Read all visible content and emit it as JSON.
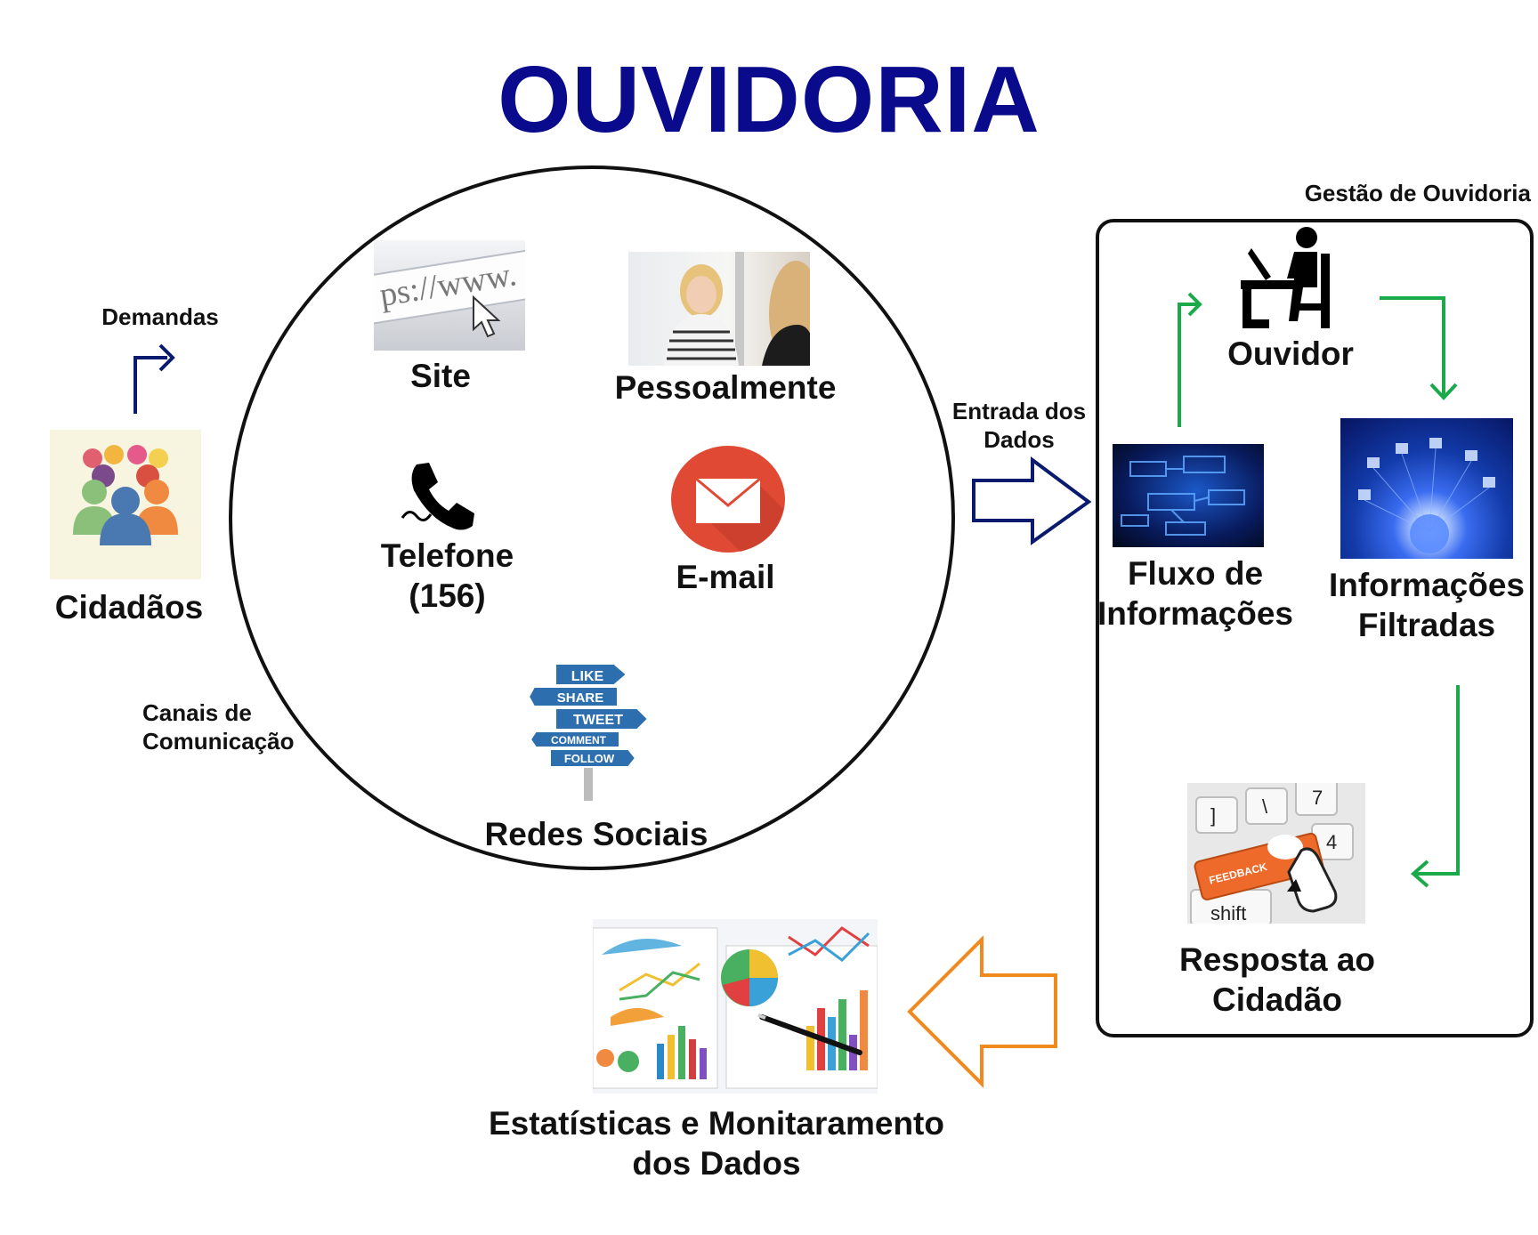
{
  "title": "OUVIDORIA",
  "colors": {
    "title": "#0a0a8c",
    "navy_arrow": "#0a1a6e",
    "green_arrow": "#1aaa4a",
    "orange_arrow": "#f08a1e",
    "email_red": "#e04a35",
    "frame": "#111111"
  },
  "labels": {
    "demandas": "Demandas",
    "cidadaos": "Cidadãos",
    "canais": [
      "Canais de",
      "Comunicação"
    ],
    "site": "Site",
    "pessoalmente": "Pessoalmente",
    "telefone": [
      "Telefone",
      "(156)"
    ],
    "email": "E-mail",
    "redes_sociais": "Redes Sociais",
    "entrada": [
      "Entrada dos",
      "Dados"
    ],
    "gestao": "Gestão de Ouvidoria",
    "ouvidor": "Ouvidor",
    "fluxo": [
      "Fluxo de",
      "Informações"
    ],
    "filtradas": [
      "Informações",
      "Filtradas"
    ],
    "resposta": [
      "Resposta ao",
      "Cidadão"
    ],
    "estatisticas": [
      "Estatísticas e Monitaramento",
      "dos Dados"
    ]
  },
  "image_text": {
    "url": "ps://www.",
    "signs": [
      "LIKE",
      "SHARE",
      "TWEET",
      "COMMENT",
      "FOLLOW"
    ],
    "feedback": "FEEDBACK",
    "keys": [
      "]",
      "\\",
      "7",
      "4",
      "shift"
    ]
  },
  "icons": {
    "cidadaos": "people-group-icon",
    "telefone": "phone-icon",
    "email": "envelope-icon",
    "ouvidor": "person-at-computer-icon"
  }
}
